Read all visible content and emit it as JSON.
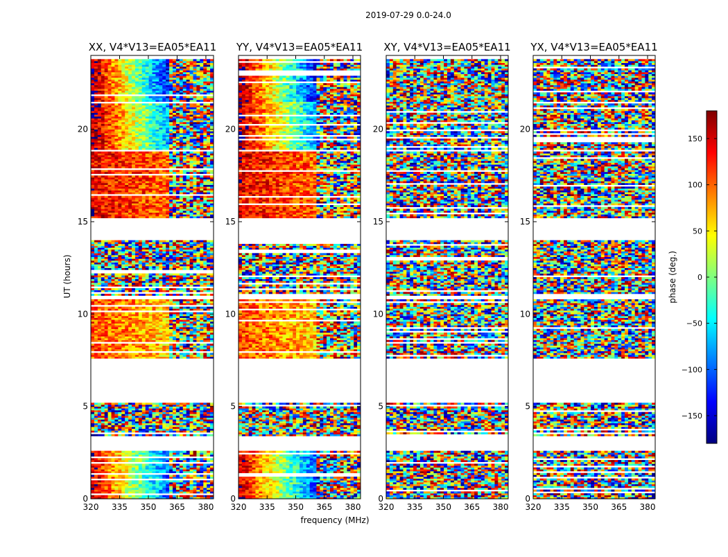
{
  "figure": {
    "suptitle": "2019-07-29 0.0-24.0"
  },
  "chart_data": {
    "type": "heatmap",
    "shared_ylabel": "UT (hours)",
    "shared_xlabel": "frequency (MHz)",
    "xlim": [
      320,
      384
    ],
    "ylim": [
      0,
      24
    ],
    "x_ticks": [
      320,
      335,
      350,
      365,
      380
    ],
    "y_ticks": [
      0,
      5,
      10,
      15,
      20
    ],
    "panels": [
      {
        "title": "XX, V4*V13=EA05*EA11",
        "pattern": "parallel"
      },
      {
        "title": "YY, V4*V13=EA05*EA11",
        "pattern": "parallel"
      },
      {
        "title": "XY, V4*V13=EA05*EA11",
        "pattern": "cross"
      },
      {
        "title": "YX, V4*V13=EA05*EA11",
        "pattern": "cross"
      }
    ],
    "colorbar": {
      "label": "phase (deg.)",
      "range": [
        -180,
        180
      ],
      "ticks": [
        150,
        100,
        50,
        0,
        -50,
        -100,
        -150
      ],
      "tick_labels": [
        "150",
        "100",
        "50",
        "0",
        "−50",
        "−100",
        "−150"
      ],
      "colormap": "jet"
    },
    "data_ut_ranges_hours": [
      [
        0.0,
        2.6
      ],
      [
        3.4,
        5.1
      ],
      [
        7.5,
        10.7
      ],
      [
        10.9,
        13.9
      ],
      [
        15.1,
        18.7
      ],
      [
        18.9,
        23.8
      ]
    ]
  }
}
